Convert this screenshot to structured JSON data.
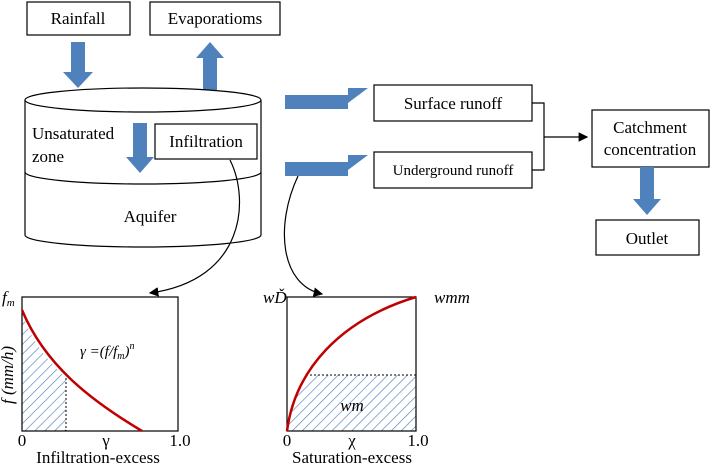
{
  "boxes": {
    "rainfall": "Rainfall",
    "evaporation": "Evaporatioms",
    "infiltration": "Infiltration",
    "surface_runoff": "Surface runoff",
    "underground_runoff": "Underground runoff",
    "catchment_line1": "Catchment",
    "catchment_line2": "concentration",
    "outlet": "Outlet"
  },
  "tank": {
    "unsaturated_line1": "Unsaturated",
    "unsaturated_line2": "zone",
    "aquifer": "Aquifer"
  },
  "plot_infiltration": {
    "ymax_label": "f",
    "ymax_sub": "m",
    "ylabel": "f (mm/h)",
    "equation_prefix": "γ =(f/f",
    "equation_sub": "m",
    "equation_close": ")",
    "equation_sup": "n",
    "x0": "0",
    "xmid": "γ",
    "x1": "1.0",
    "caption": "Infiltration-excess"
  },
  "plot_saturation": {
    "ymax_label": "wĎ",
    "right_label": "wmm",
    "area_label": "wm",
    "x0": "0",
    "xmid": "χ",
    "x1": "1.0",
    "caption": "Saturation-excess"
  },
  "colors": {
    "arrow_fill": "#4F81BD",
    "curve": "#C00000",
    "hatch": "#4F81BD"
  }
}
